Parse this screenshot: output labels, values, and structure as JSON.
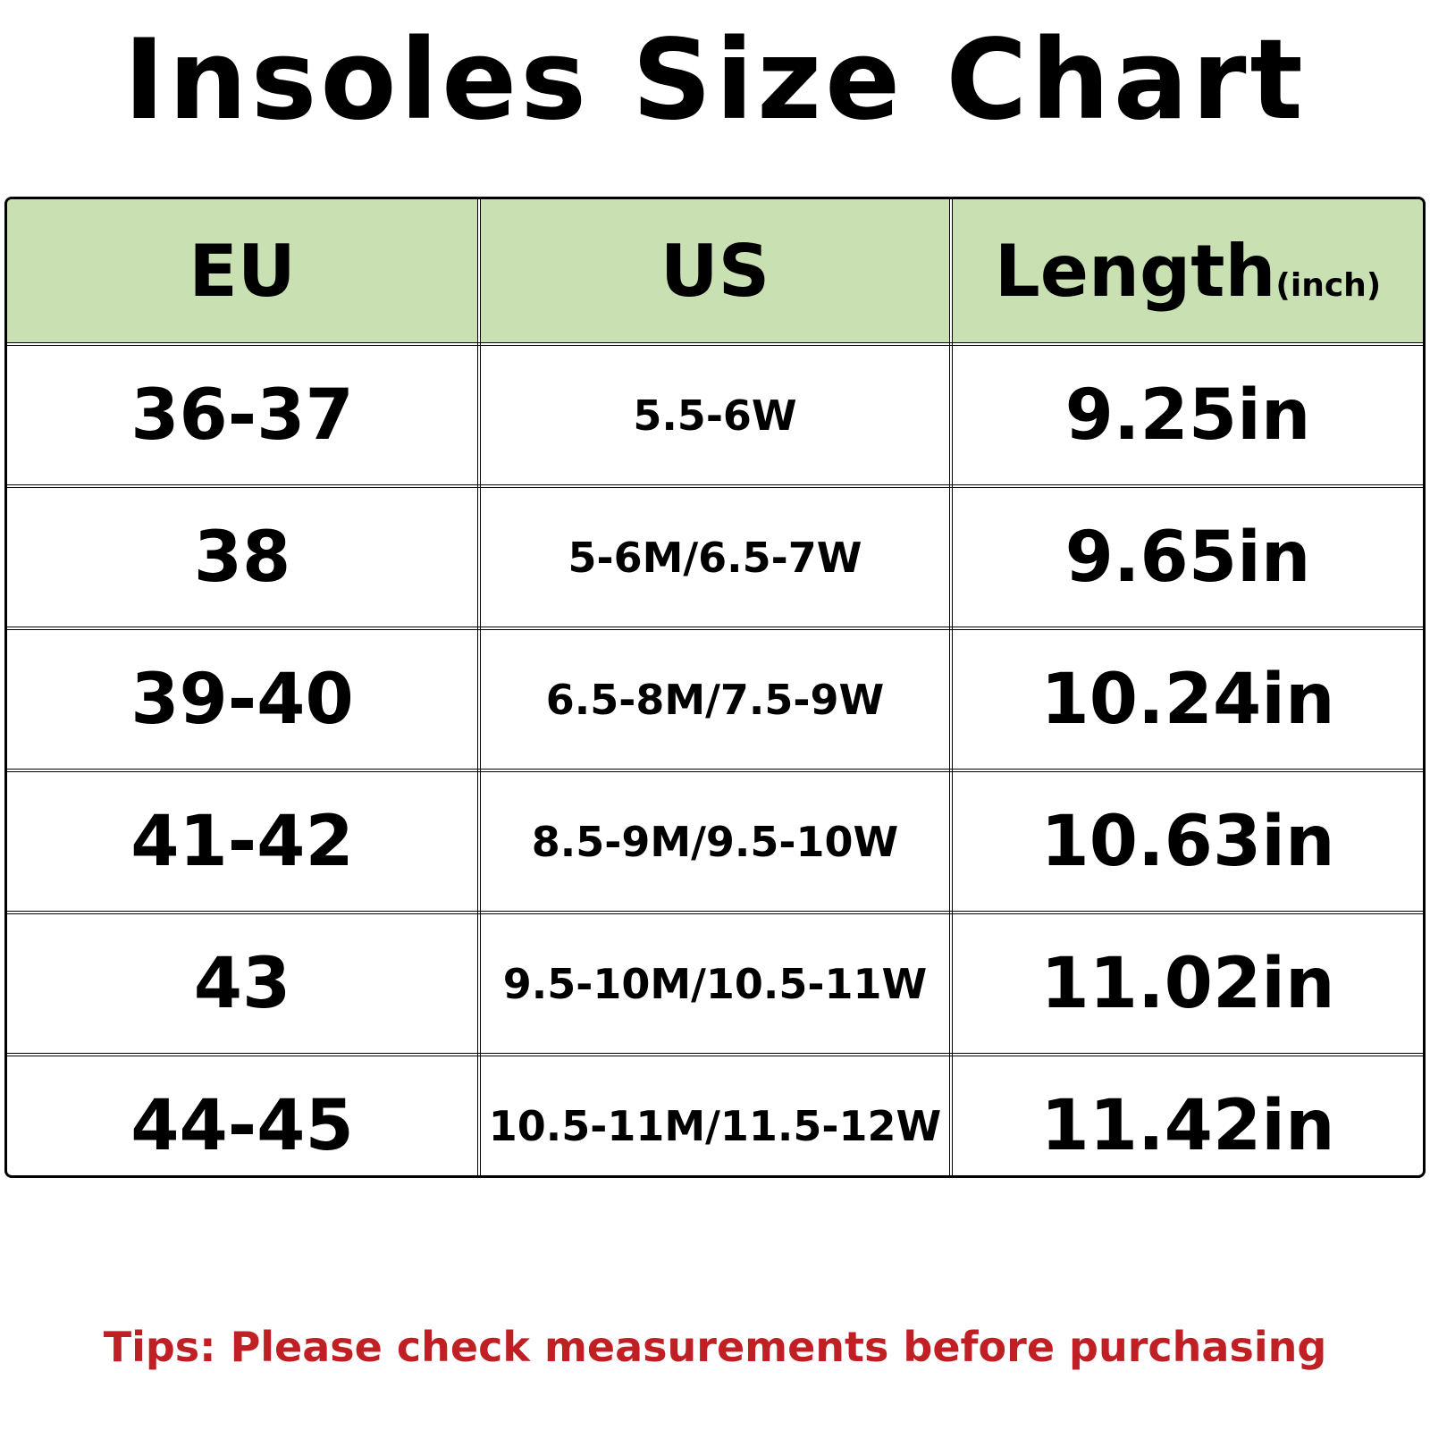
{
  "title": "Insoles Size Chart",
  "chart_data": {
    "type": "table",
    "title": "Insoles Size Chart",
    "columns": [
      {
        "label": "EU",
        "unit": ""
      },
      {
        "label": "US",
        "unit": ""
      },
      {
        "label": "Length",
        "unit": "(inch)"
      }
    ],
    "rows": [
      {
        "eu": "36-37",
        "us": "5.5-6W",
        "length": "9.25in"
      },
      {
        "eu": "38",
        "us": "5-6M/6.5-7W",
        "length": "9.65in"
      },
      {
        "eu": "39-40",
        "us": "6.5-8M/7.5-9W",
        "length": "10.24in"
      },
      {
        "eu": "41-42",
        "us": "8.5-9M/9.5-10W",
        "length": "10.63in"
      },
      {
        "eu": "43",
        "us": "9.5-10M/10.5-11W",
        "length": "11.02in"
      },
      {
        "eu": "44-45",
        "us": "10.5-11M/11.5-12W",
        "length": "11.42in"
      }
    ]
  },
  "tips": "Tips: Please check measurements before purchasing",
  "colors": {
    "header_background": "#c9e0b3",
    "tips_text": "#c01f24",
    "border": "#000000"
  }
}
